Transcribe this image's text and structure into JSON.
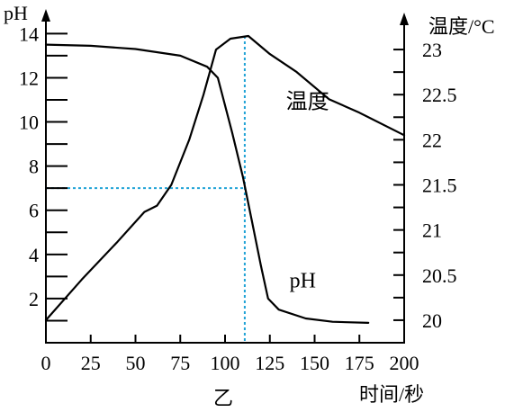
{
  "chart_data": {
    "type": "line",
    "caption": "乙",
    "xlabel": "时间/秒",
    "ylabel_left": "pH",
    "ylabel_right": "温度/°C",
    "x_ticks": [
      0,
      25,
      50,
      75,
      100,
      125,
      150,
      175,
      200
    ],
    "xlim": [
      0,
      200
    ],
    "y_left_ticks": [
      2,
      4,
      6,
      8,
      10,
      12,
      14
    ],
    "y_left_lim": [
      0,
      14.3
    ],
    "y_right_ticks": [
      20,
      20.5,
      21,
      21.5,
      22,
      22.5,
      23
    ],
    "y_right_lim": [
      19.75,
      23.25
    ],
    "series": [
      {
        "name": "pH",
        "axis": "left",
        "label_at": [
          136,
          2.5
        ],
        "points": [
          [
            0,
            13.5
          ],
          [
            25,
            13.45
          ],
          [
            50,
            13.3
          ],
          [
            75,
            13.0
          ],
          [
            90,
            12.5
          ],
          [
            96,
            12.0
          ],
          [
            104,
            9.5
          ],
          [
            110,
            7.5
          ],
          [
            115,
            5.5
          ],
          [
            120,
            3.5
          ],
          [
            124,
            2.0
          ],
          [
            130,
            1.5
          ],
          [
            145,
            1.1
          ],
          [
            160,
            0.95
          ],
          [
            180,
            0.9
          ]
        ]
      },
      {
        "name": "温度",
        "axis": "right",
        "label_at": [
          134,
          22.35
        ],
        "points": [
          [
            0,
            20.0
          ],
          [
            20,
            20.45
          ],
          [
            40,
            20.87
          ],
          [
            55,
            21.2
          ],
          [
            62,
            21.27
          ],
          [
            70,
            21.5
          ],
          [
            80,
            22.0
          ],
          [
            88,
            22.5
          ],
          [
            95,
            23.0
          ],
          [
            103,
            23.12
          ],
          [
            113,
            23.15
          ],
          [
            125,
            22.95
          ],
          [
            140,
            22.75
          ],
          [
            158,
            22.45
          ],
          [
            175,
            22.3
          ],
          [
            200,
            22.05
          ]
        ]
      }
    ],
    "reference": {
      "x": 111,
      "ph": 7
    },
    "colors": {
      "axis": "#000000",
      "curve": "#000000",
      "reference": "#1fa2d6"
    }
  }
}
